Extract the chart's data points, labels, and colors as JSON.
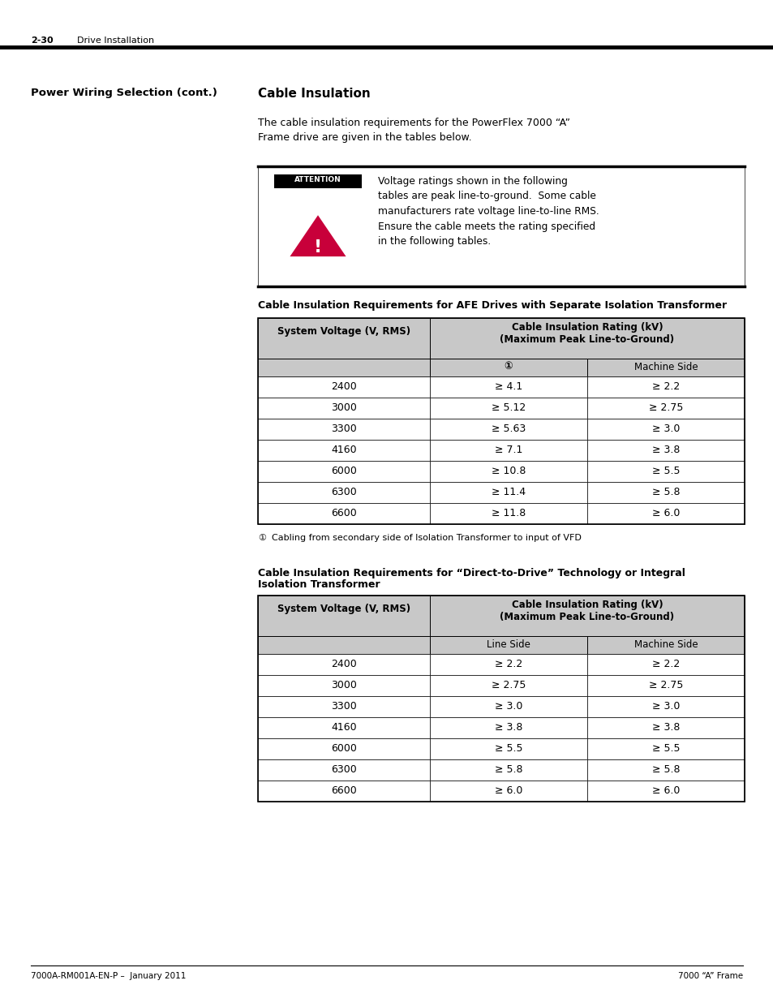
{
  "page_num": "2-30",
  "page_header_right": "Drive Installation",
  "left_heading": "Power Wiring Selection (cont.)",
  "right_heading": "Cable Insulation",
  "intro_text": "The cable insulation requirements for the PowerFlex 7000 “A”\nFrame drive are given in the tables below.",
  "attention_text": "Voltage ratings shown in the following\ntables are peak line-to-ground.  Some cable\nmanufacturers rate voltage line-to-line RMS.\nEnsure the cable meets the rating specified\nin the following tables.",
  "table1_title": "Cable Insulation Requirements for AFE Drives with Separate Isolation Transformer",
  "table1_col1_header": "System Voltage (V, RMS)",
  "table1_col2_header": "Cable Insulation Rating (kV)\n(Maximum Peak Line-to-Ground)",
  "table1_subcol1": "①",
  "table1_subcol2": "Machine Side",
  "table1_rows": [
    [
      "2400",
      "≥ 4.1",
      "≥ 2.2"
    ],
    [
      "3000",
      "≥ 5.12",
      "≥ 2.75"
    ],
    [
      "3300",
      "≥ 5.63",
      "≥ 3.0"
    ],
    [
      "4160",
      "≥ 7.1",
      "≥ 3.8"
    ],
    [
      "6000",
      "≥ 10.8",
      "≥ 5.5"
    ],
    [
      "6300",
      "≥ 11.4",
      "≥ 5.8"
    ],
    [
      "6600",
      "≥ 11.8",
      "≥ 6.0"
    ]
  ],
  "table1_footnote_sym": "①",
  "table1_footnote_text": "Cabling from secondary side of Isolation Transformer to input of VFD",
  "table2_title_line1": "Cable Insulation Requirements for “Direct-to-Drive” Technology or Integral",
  "table2_title_line2": "Isolation Transformer",
  "table2_col1_header": "System Voltage (V, RMS)",
  "table2_col2_header": "Cable Insulation Rating (kV)\n(Maximum Peak Line-to-Ground)",
  "table2_subcol1": "Line Side",
  "table2_subcol2": "Machine Side",
  "table2_rows": [
    [
      "2400",
      "≥ 2.2",
      "≥ 2.2"
    ],
    [
      "3000",
      "≥ 2.75",
      "≥ 2.75"
    ],
    [
      "3300",
      "≥ 3.0",
      "≥ 3.0"
    ],
    [
      "4160",
      "≥ 3.8",
      "≥ 3.8"
    ],
    [
      "6000",
      "≥ 5.5",
      "≥ 5.5"
    ],
    [
      "6300",
      "≥ 5.8",
      "≥ 5.8"
    ],
    [
      "6600",
      "≥ 6.0",
      "≥ 6.0"
    ]
  ],
  "footer_left": "7000A-RM001A-EN-P –  January 2011",
  "footer_right": "7000 “A” Frame",
  "bg_color": "#ffffff",
  "gray_header": "#c8c8c8",
  "attention_label_color": "#000000",
  "triangle_color": "#c8003a"
}
